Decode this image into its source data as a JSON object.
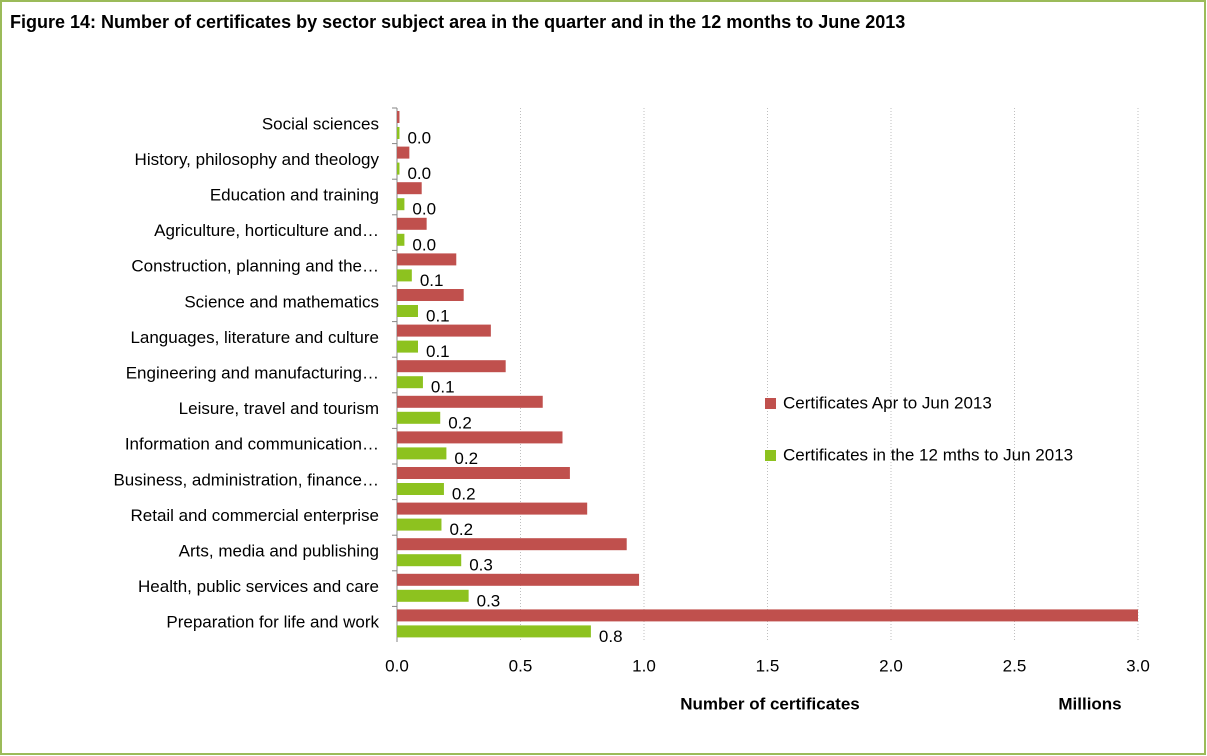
{
  "chart_data": {
    "type": "hbar",
    "title": "Figure 14: Number of certificates by sector subject area in the quarter and in the 12 months to June 2013",
    "x_label": "Number of certificates",
    "x_unit": "Millions",
    "categories": [
      "Social sciences",
      "History, philosophy and theology",
      "Education and training",
      "Agriculture, horticulture and…",
      "Construction, planning and the…",
      "Science and mathematics",
      "Languages, literature and culture",
      "Engineering and manufacturing…",
      "Leisure, travel and tourism",
      "Information and communication…",
      "Business, administration, finance…",
      "Retail and commercial enterprise",
      "Arts, media and publishing",
      "Health, public services and care",
      "Preparation for life and work"
    ],
    "series": [
      {
        "name": "Certificates Apr to Jun 2013",
        "color": "#c0504d",
        "values": [
          0.01,
          0.05,
          0.1,
          0.12,
          0.24,
          0.27,
          0.38,
          0.44,
          0.59,
          0.67,
          0.7,
          0.77,
          0.93,
          0.98,
          3.0
        ]
      },
      {
        "name": "Certificates in the 12 mths to Jun 2013",
        "color": "#8dc21f",
        "values": [
          0.01,
          0.01,
          0.03,
          0.03,
          0.06,
          0.085,
          0.085,
          0.105,
          0.175,
          0.2,
          0.19,
          0.18,
          0.26,
          0.29,
          0.785
        ],
        "value_labels": [
          "0.0",
          "0.0",
          "0.0",
          "0.0",
          "0.1",
          "0.1",
          "0.1",
          "0.1",
          "0.2",
          "0.2",
          "0.2",
          "0.2",
          "0.3",
          "0.3",
          "0.8"
        ]
      }
    ],
    "xlim": [
      0,
      3
    ],
    "xticks": [
      {
        "value": 0,
        "label": "0.0"
      },
      0.5,
      {
        "value": 1,
        "label": "1.0"
      },
      1.5,
      {
        "value": 2,
        "label": "2.0"
      },
      2.5,
      {
        "value": 3,
        "label": "3.0"
      }
    ],
    "grid": true,
    "legend": "right"
  }
}
